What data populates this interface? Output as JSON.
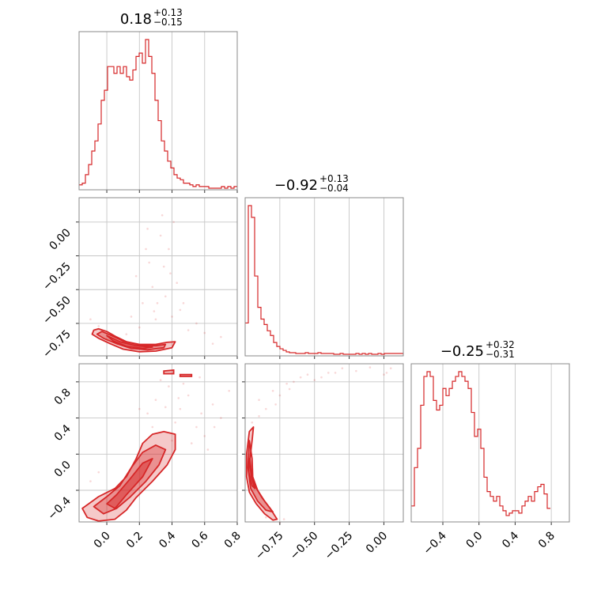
{
  "chart_data": {
    "type": "corner",
    "color": "#d62728",
    "parameters": [
      {
        "title": "0.18",
        "title_plus": "+0.13",
        "title_minus": "−0.15",
        "range": [
          -0.17,
          0.8
        ],
        "ticks": [
          0.0,
          0.2,
          0.4,
          0.6,
          0.8
        ],
        "tick_labels": [
          "0.0",
          "0.2",
          "0.4",
          "0.6",
          "0.8"
        ]
      },
      {
        "title": "−0.92",
        "title_plus": "+0.13",
        "title_minus": "−0.04",
        "range": [
          -0.99,
          -0.87
        ],
        "x_range": [
          -1.0,
          0.14
        ],
        "ticks": [
          -0.75,
          -0.5,
          -0.25,
          0.0
        ],
        "tick_labels": [
          "−0.75",
          "−0.50",
          "−0.25",
          "0.00"
        ],
        "y_range": [
          -0.99,
          0.18
        ],
        "y_ticks": [
          0.0,
          -0.25,
          -0.5,
          -0.75
        ],
        "y_tick_labels": [
          "0.00",
          "−0.25",
          "−0.50",
          "−0.75"
        ]
      },
      {
        "title": "−0.25",
        "title_plus": "+0.32",
        "title_minus": "−0.31",
        "range": [
          -0.75,
          1.0
        ],
        "ticks": [
          -0.4,
          0.0,
          0.4,
          0.8
        ],
        "tick_labels": [
          "−0.4",
          "0.0",
          "0.4",
          "0.8"
        ]
      }
    ],
    "histograms": [
      {
        "param": 0,
        "edges_start": -0.17,
        "bin_width": 0.0194,
        "counts": [
          2,
          3,
          8,
          14,
          22,
          28,
          38,
          52,
          58,
          72,
          72,
          68,
          72,
          68,
          72,
          66,
          64,
          70,
          78,
          80,
          74,
          88,
          78,
          68,
          52,
          40,
          28,
          22,
          16,
          12,
          8,
          6,
          5,
          3,
          3,
          2,
          1,
          2,
          1,
          1,
          1,
          0,
          0,
          0,
          0,
          1,
          0,
          1,
          0,
          1
        ]
      },
      {
        "param": 1,
        "edges_start": -1.0,
        "bin_width": 0.0228,
        "counts": [
          40,
          190,
          175,
          100,
          60,
          45,
          38,
          30,
          24,
          15,
          10,
          7,
          5,
          3,
          2,
          2,
          1,
          1,
          1,
          2,
          1,
          1,
          1,
          2,
          1,
          1,
          1,
          1,
          0,
          0,
          1,
          0,
          0,
          0,
          0,
          1,
          0,
          1,
          0,
          1,
          0,
          0,
          1,
          0,
          1,
          1,
          1,
          1,
          1,
          1
        ]
      },
      {
        "param": 2,
        "edges_start": -0.75,
        "bin_width": 0.035,
        "counts": [
          6,
          22,
          30,
          48,
          60,
          62,
          60,
          50,
          46,
          48,
          55,
          52,
          55,
          58,
          60,
          62,
          60,
          58,
          55,
          45,
          35,
          38,
          30,
          18,
          12,
          10,
          8,
          10,
          6,
          4,
          2,
          3,
          4,
          4,
          3,
          6,
          8,
          10,
          8,
          12,
          14,
          15,
          11,
          5
        ]
      }
    ],
    "contours_2d": [
      {
        "x_param": 0,
        "y_param": 1,
        "levels": [
          [
            [
              -0.05,
              -0.79
            ],
            [
              0.0,
              -0.81
            ],
            [
              0.06,
              -0.85
            ],
            [
              0.12,
              -0.885
            ],
            [
              0.2,
              -0.905
            ],
            [
              0.3,
              -0.905
            ],
            [
              0.37,
              -0.89
            ],
            [
              0.42,
              -0.885
            ],
            [
              0.4,
              -0.93
            ],
            [
              0.3,
              -0.955
            ],
            [
              0.2,
              -0.96
            ],
            [
              0.1,
              -0.94
            ],
            [
              0.02,
              -0.9
            ],
            [
              -0.05,
              -0.86
            ],
            [
              -0.09,
              -0.83
            ],
            [
              -0.08,
              -0.8
            ]
          ],
          [
            [
              -0.03,
              -0.81
            ],
            [
              0.03,
              -0.84
            ],
            [
              0.1,
              -0.88
            ],
            [
              0.2,
              -0.91
            ],
            [
              0.3,
              -0.915
            ],
            [
              0.36,
              -0.905
            ],
            [
              0.35,
              -0.93
            ],
            [
              0.25,
              -0.945
            ],
            [
              0.15,
              -0.935
            ],
            [
              0.06,
              -0.9
            ],
            [
              -0.02,
              -0.86
            ],
            [
              -0.06,
              -0.83
            ]
          ],
          [
            [
              0.0,
              -0.84
            ],
            [
              0.08,
              -0.885
            ],
            [
              0.18,
              -0.915
            ],
            [
              0.28,
              -0.925
            ],
            [
              0.22,
              -0.935
            ],
            [
              0.12,
              -0.92
            ],
            [
              0.04,
              -0.88
            ]
          ]
        ],
        "points": [
          [
            0.25,
            -0.05
          ],
          [
            0.33,
            -0.1
          ],
          [
            0.41,
            0.0
          ],
          [
            0.35,
            -0.33
          ],
          [
            0.28,
            -0.48
          ],
          [
            0.22,
            -0.6
          ],
          [
            0.36,
            -0.55
          ],
          [
            0.4,
            -0.7
          ],
          [
            0.45,
            -0.65
          ],
          [
            0.3,
            -0.72
          ],
          [
            0.2,
            -0.78
          ],
          [
            0.15,
            -0.7
          ],
          [
            0.5,
            -0.8
          ],
          [
            0.55,
            -0.75
          ],
          [
            0.6,
            -0.82
          ],
          [
            0.18,
            -0.4
          ],
          [
            0.26,
            -0.3
          ],
          [
            0.38,
            -0.2
          ],
          [
            0.43,
            -0.45
          ],
          [
            0.31,
            -0.6
          ],
          [
            -0.1,
            -0.72
          ],
          [
            -0.05,
            -0.77
          ],
          [
            0.65,
            -0.9
          ],
          [
            0.7,
            -0.85
          ],
          [
            0.12,
            -0.83
          ],
          [
            0.47,
            -0.6
          ],
          [
            0.24,
            -0.2
          ],
          [
            0.34,
            0.05
          ],
          [
            0.29,
            -0.66
          ],
          [
            0.39,
            -0.38
          ]
        ]
      },
      {
        "x_param": 0,
        "y_param": 2,
        "levels": [
          [
            [
              -0.15,
              -0.6
            ],
            [
              -0.05,
              -0.47
            ],
            [
              0.05,
              -0.38
            ],
            [
              0.12,
              -0.25
            ],
            [
              0.18,
              -0.05
            ],
            [
              0.22,
              0.12
            ],
            [
              0.28,
              0.22
            ],
            [
              0.35,
              0.25
            ],
            [
              0.42,
              0.22
            ],
            [
              0.42,
              0.05
            ],
            [
              0.37,
              -0.12
            ],
            [
              0.28,
              -0.3
            ],
            [
              0.18,
              -0.48
            ],
            [
              0.12,
              -0.62
            ],
            [
              0.05,
              -0.72
            ],
            [
              -0.05,
              -0.74
            ],
            [
              -0.12,
              -0.7
            ]
          ],
          [
            [
              -0.08,
              -0.58
            ],
            [
              0.0,
              -0.47
            ],
            [
              0.08,
              -0.35
            ],
            [
              0.15,
              -0.15
            ],
            [
              0.22,
              0.02
            ],
            [
              0.3,
              0.1
            ],
            [
              0.36,
              0.05
            ],
            [
              0.32,
              -0.12
            ],
            [
              0.24,
              -0.3
            ],
            [
              0.14,
              -0.48
            ],
            [
              0.06,
              -0.6
            ],
            [
              -0.02,
              -0.66
            ]
          ],
          [
            [
              0.0,
              -0.55
            ],
            [
              0.06,
              -0.45
            ],
            [
              0.14,
              -0.28
            ],
            [
              0.22,
              -0.1
            ],
            [
              0.28,
              -0.05
            ],
            [
              0.22,
              -0.25
            ],
            [
              0.12,
              -0.45
            ],
            [
              0.05,
              -0.6
            ]
          ]
        ],
        "islands": [
          [
            [
              0.35,
              0.92
            ],
            [
              0.41,
              0.93
            ],
            [
              0.41,
              0.89
            ],
            [
              0.35,
              0.89
            ]
          ],
          [
            [
              0.45,
              0.88
            ],
            [
              0.52,
              0.88
            ],
            [
              0.52,
              0.86
            ],
            [
              0.45,
              0.86
            ]
          ]
        ],
        "points": [
          [
            0.3,
            0.6
          ],
          [
            0.38,
            0.75
          ],
          [
            0.45,
            0.5
          ],
          [
            0.55,
            0.3
          ],
          [
            0.5,
            0.65
          ],
          [
            0.6,
            0.2
          ],
          [
            0.25,
            0.45
          ],
          [
            0.42,
            0.35
          ],
          [
            0.65,
            0.55
          ],
          [
            0.33,
            0.82
          ],
          [
            0.47,
            0.78
          ],
          [
            0.58,
            0.45
          ],
          [
            0.7,
            0.4
          ],
          [
            0.2,
            0.5
          ],
          [
            0.52,
            0.12
          ],
          [
            0.62,
            0.05
          ],
          [
            0.44,
            0.62
          ],
          [
            0.75,
            0.7
          ],
          [
            0.36,
            0.52
          ],
          [
            0.28,
            0.3
          ],
          [
            -0.05,
            -0.2
          ],
          [
            -0.1,
            -0.3
          ],
          [
            0.57,
            0.85
          ],
          [
            0.66,
            0.3
          ],
          [
            0.4,
            0.15
          ]
        ]
      },
      {
        "x_param": 1,
        "y_param": 2,
        "levels": [
          [
            [
              -0.97,
              0.25
            ],
            [
              -0.94,
              0.3
            ],
            [
              -0.95,
              0.15
            ],
            [
              -0.965,
              -0.05
            ],
            [
              -0.955,
              -0.2
            ],
            [
              -0.93,
              -0.35
            ],
            [
              -0.88,
              -0.48
            ],
            [
              -0.82,
              -0.6
            ],
            [
              -0.77,
              -0.72
            ],
            [
              -0.8,
              -0.73
            ],
            [
              -0.86,
              -0.66
            ],
            [
              -0.92,
              -0.55
            ],
            [
              -0.97,
              -0.42
            ],
            [
              -0.99,
              -0.25
            ],
            [
              -0.99,
              0.0
            ]
          ],
          [
            [
              -0.97,
              0.15
            ],
            [
              -0.95,
              -0.05
            ],
            [
              -0.945,
              -0.25
            ],
            [
              -0.91,
              -0.4
            ],
            [
              -0.86,
              -0.52
            ],
            [
              -0.8,
              -0.64
            ],
            [
              -0.85,
              -0.62
            ],
            [
              -0.91,
              -0.52
            ],
            [
              -0.96,
              -0.38
            ],
            [
              -0.98,
              -0.15
            ]
          ],
          [
            [
              -0.97,
              -0.05
            ],
            [
              -0.955,
              -0.25
            ],
            [
              -0.93,
              -0.38
            ],
            [
              -0.95,
              -0.35
            ],
            [
              -0.975,
              -0.2
            ]
          ]
        ],
        "points": [
          [
            -0.9,
            0.6
          ],
          [
            -0.8,
            0.7
          ],
          [
            -0.6,
            0.85
          ],
          [
            -0.5,
            0.82
          ],
          [
            -0.4,
            0.9
          ],
          [
            -0.3,
            0.95
          ],
          [
            -0.7,
            0.78
          ],
          [
            -0.85,
            0.5
          ],
          [
            -0.75,
            0.65
          ],
          [
            -0.2,
            0.92
          ],
          [
            0.0,
            0.88
          ],
          [
            0.05,
            0.95
          ],
          [
            -0.65,
            0.8
          ],
          [
            -0.55,
            0.88
          ],
          [
            -0.95,
            0.35
          ],
          [
            -0.9,
            0.42
          ],
          [
            -0.45,
            0.85
          ],
          [
            -0.35,
            0.9
          ],
          [
            -0.1,
            0.96
          ],
          [
            0.02,
            0.9
          ],
          [
            -0.78,
            0.55
          ],
          [
            -0.68,
            0.72
          ],
          [
            -0.85,
            -0.7
          ],
          [
            -0.75,
            -0.76
          ],
          [
            -0.72,
            -0.72
          ]
        ]
      }
    ]
  }
}
